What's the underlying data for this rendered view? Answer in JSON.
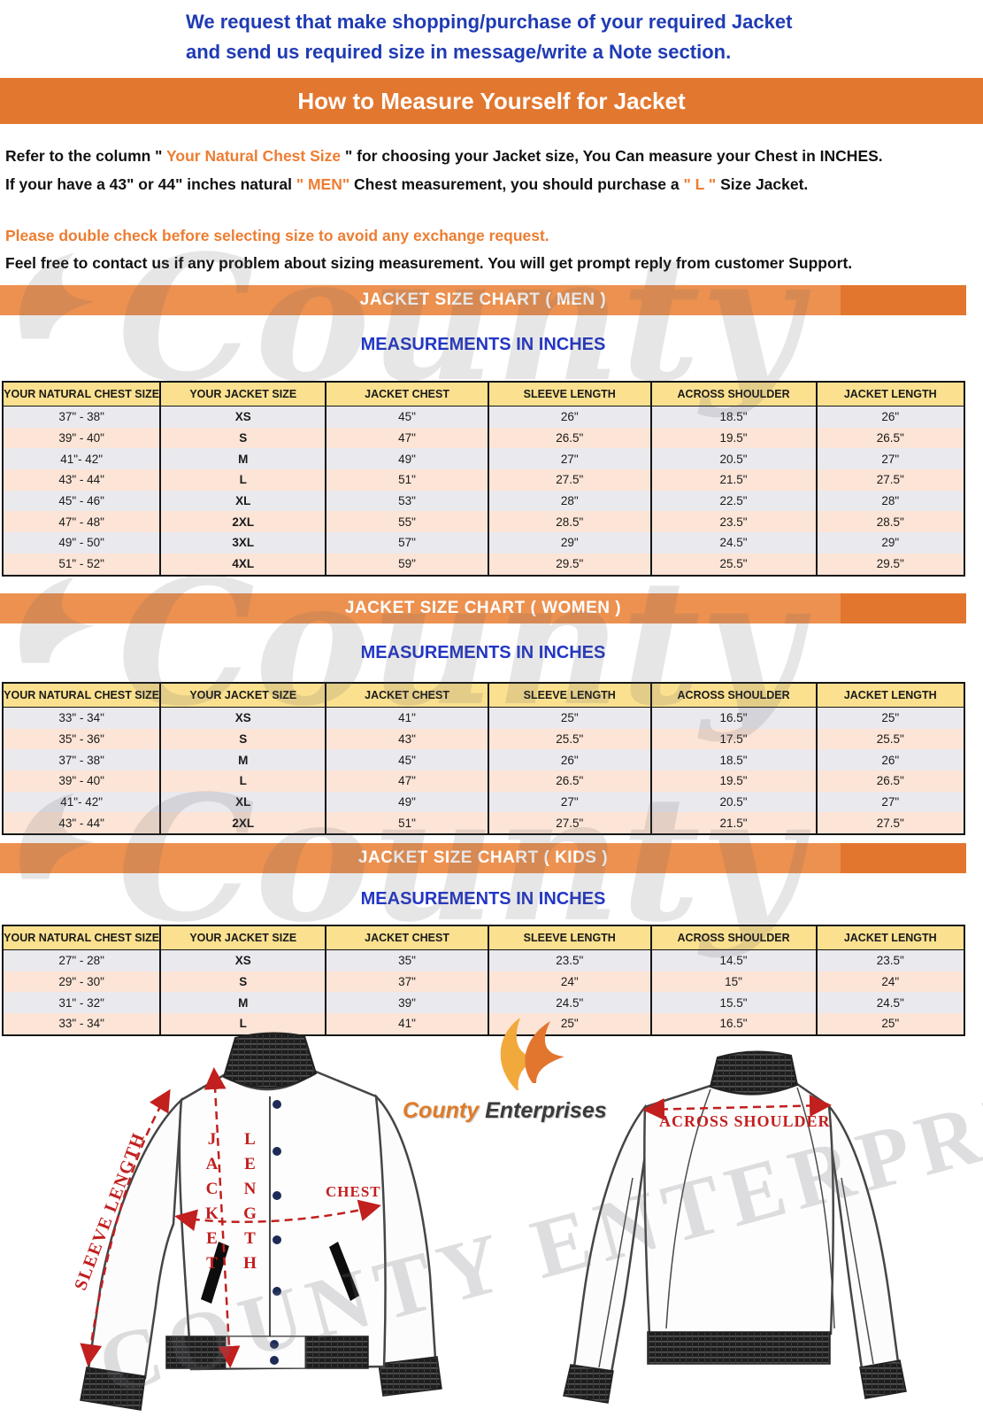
{
  "header": {
    "note_line1": "We request that make shopping/purchase of your required Jacket",
    "note_line2": "and send us required size in message/write a Note section.",
    "banner_title": "How to Measure Yourself for Jacket"
  },
  "intro": {
    "p1_a": "Refer to the column \" ",
    "p1_b": "Your Natural Chest Size",
    "p1_c": " \" for choosing your Jacket size, You Can measure your Chest in INCHES.",
    "p2_a": "If your have a 43\" or 44\"  inches natural ",
    "p2_b": "\" MEN\"",
    "p2_c": " Chest measurement, you should purchase a ",
    "p2_d": "\" L \"",
    "p2_e": " Size Jacket.",
    "warning": "Please double check before selecting size to avoid any exchange request.",
    "contact": "Feel free to contact us if any problem about sizing measurement. You will get prompt reply from customer Support."
  },
  "measurements_subtitle": "MEASUREMENTS IN INCHES",
  "charts": [
    {
      "title": "JACKET SIZE CHART ( MEN )",
      "headers": [
        "YOUR NATURAL CHEST SIZE",
        "YOUR JACKET SIZE",
        "JACKET CHEST",
        "SLEEVE LENGTH",
        "ACROSS SHOULDER",
        "JACKET LENGTH"
      ],
      "rows": [
        [
          "37\" - 38\"",
          "XS",
          "45\"",
          "26\"",
          "18.5\"",
          "26\""
        ],
        [
          "39\" - 40\"",
          "S",
          "47\"",
          "26.5\"",
          "19.5\"",
          "26.5\""
        ],
        [
          "41\"- 42\"",
          "M",
          "49\"",
          "27\"",
          "20.5\"",
          "27\""
        ],
        [
          "43\" - 44\"",
          "L",
          "51\"",
          "27.5\"",
          "21.5\"",
          "27.5\""
        ],
        [
          "45\" - 46\"",
          "XL",
          "53\"",
          "28\"",
          "22.5\"",
          "28\""
        ],
        [
          "47\" - 48\"",
          "2XL",
          "55\"",
          "28.5\"",
          "23.5\"",
          "28.5\""
        ],
        [
          "49\" - 50\"",
          "3XL",
          "57\"",
          "29\"",
          "24.5\"",
          "29\""
        ],
        [
          "51\" - 52\"",
          "4XL",
          "59\"",
          "29.5\"",
          "25.5\"",
          "29.5\""
        ]
      ]
    },
    {
      "title": "JACKET SIZE CHART ( WOMEN )",
      "headers": [
        "YOUR NATURAL CHEST SIZE",
        "YOUR JACKET SIZE",
        "JACKET CHEST",
        "SLEEVE LENGTH",
        "ACROSS SHOULDER",
        "JACKET LENGTH"
      ],
      "rows": [
        [
          "33\" - 34\"",
          "XS",
          "41\"",
          "25\"",
          "16.5\"",
          "25\""
        ],
        [
          "35\" - 36\"",
          "S",
          "43\"",
          "25.5\"",
          "17.5\"",
          "25.5\""
        ],
        [
          "37\" - 38\"",
          "M",
          "45\"",
          "26\"",
          "18.5\"",
          "26\""
        ],
        [
          "39\" - 40\"",
          "L",
          "47\"",
          "26.5\"",
          "19.5\"",
          "26.5\""
        ],
        [
          "41\"- 42\"",
          "XL",
          "49\"",
          "27\"",
          "20.5\"",
          "27\""
        ],
        [
          "43\" - 44\"",
          "2XL",
          "51\"",
          "27.5\"",
          "21.5\"",
          "27.5\""
        ]
      ]
    },
    {
      "title": "JACKET SIZE CHART ( KIDS )",
      "headers": [
        "YOUR NATURAL CHEST SIZE",
        "YOUR JACKET SIZE",
        "JACKET CHEST",
        "SLEEVE LENGTH",
        "ACROSS SHOULDER",
        "JACKET LENGTH"
      ],
      "rows": [
        [
          "27\" - 28\"",
          "XS",
          "35\"",
          "23.5\"",
          "14.5\"",
          "23.5\""
        ],
        [
          "29\" - 30\"",
          "S",
          "37\"",
          "24\"",
          "15\"",
          "24\""
        ],
        [
          "31\" - 32\"",
          "M",
          "39\"",
          "24.5\"",
          "15.5\"",
          "24.5\""
        ],
        [
          "33\" - 34\"",
          "L",
          "41\"",
          "25\"",
          "16.5\"",
          "25\""
        ]
      ]
    }
  ],
  "diagram": {
    "sleeve_length_label": "SLEEVE LENGTH",
    "jacket_word": "JACKET",
    "length_word": "LENGTH",
    "chest_label": "CHEST",
    "across_shoulder_label": "ACROSS SHOULDER"
  },
  "logo": {
    "name_part1": "County",
    "name_part2": "Enterprises"
  },
  "watermark": {
    "county": "County",
    "diagonal": "COUNTY ENTERPRISES"
  },
  "colors": {
    "banner_orange": "#e2772f",
    "banner_orange_light": "#ec9150",
    "accent_orange_text": "#ed7d31",
    "note_blue": "#1f3bb3",
    "heading_blue": "#2236c4",
    "header_yellow": "#fbe18f",
    "row_gray": "#eae9ee",
    "row_pink": "#fce4d6",
    "annotation_red": "#c21f1f",
    "button_navy": "#1d2b56"
  }
}
